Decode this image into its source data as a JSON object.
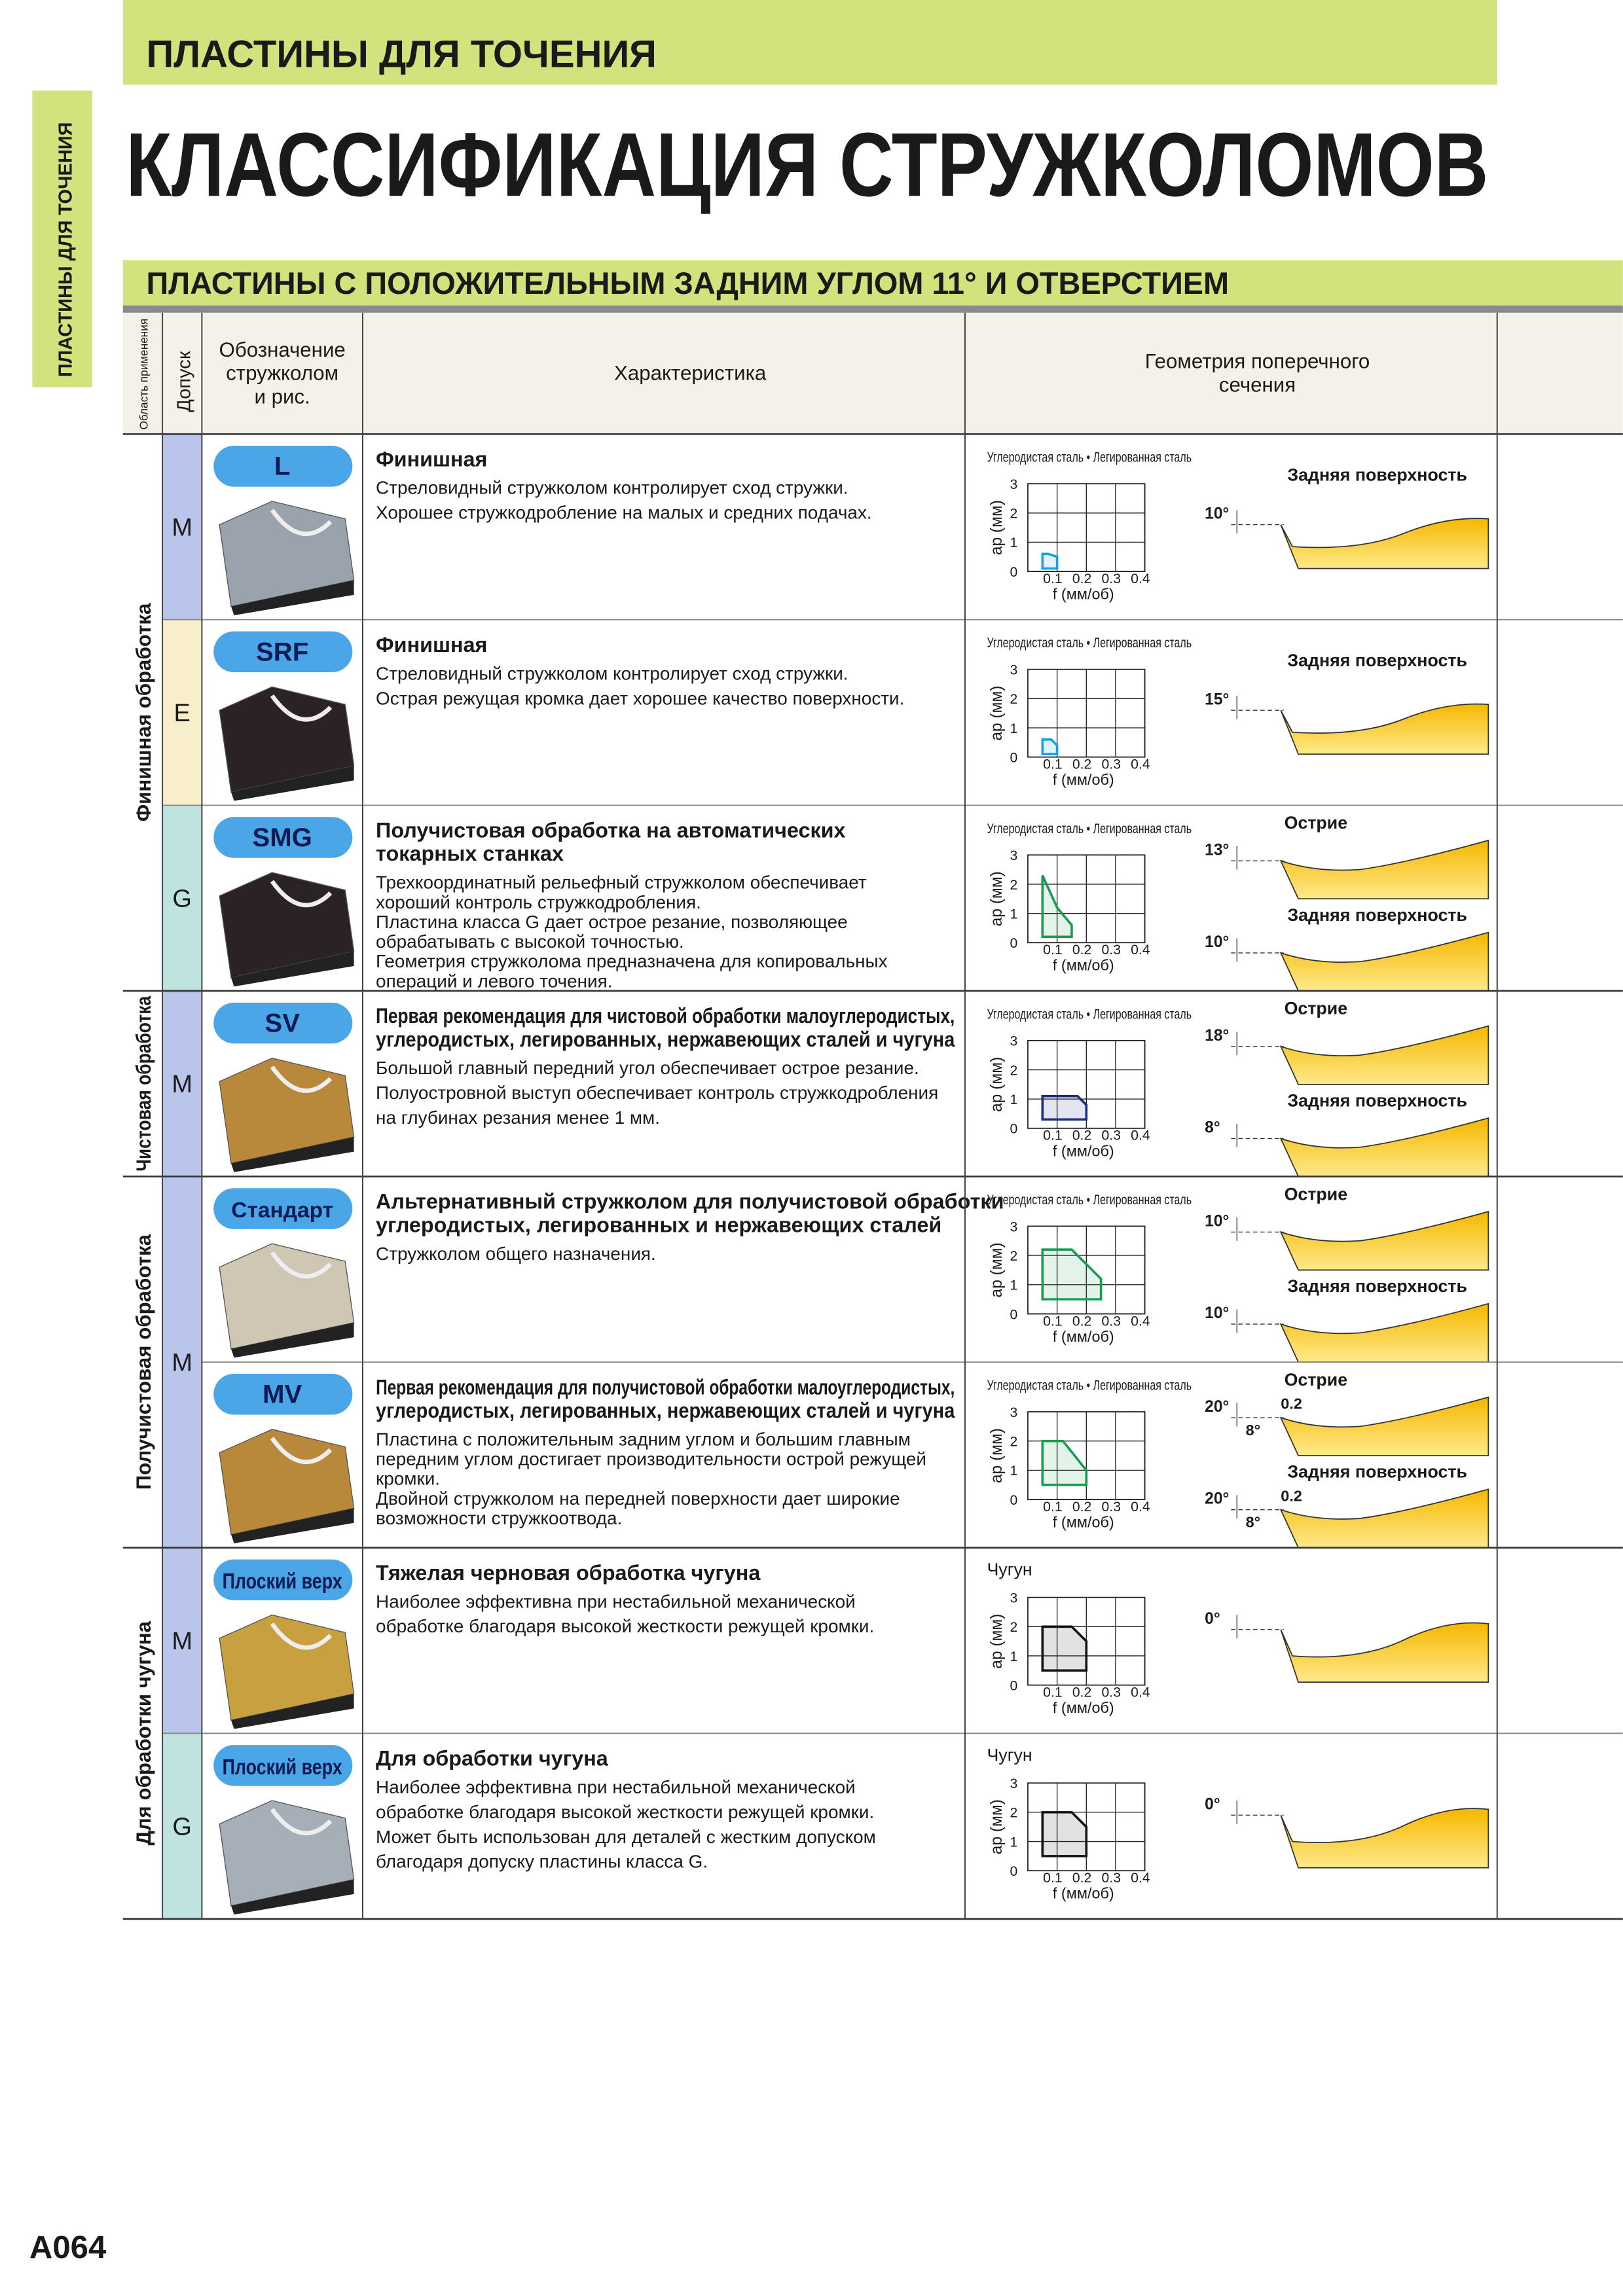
{
  "header": {
    "section": "ПЛАСТИНЫ ДЛЯ ТОЧЕНИЯ",
    "side_tab": "ПЛАСТИНЫ ДЛЯ ТОЧЕНИЯ",
    "title": "КЛАССИФИКАЦИЯ СТРУЖКОЛОМОВ",
    "subtitle": "ПЛАСТИНЫ С ПОЛОЖИТЕЛЬНЫМ ЗАДНИМ УГЛОМ 11° И ОТВЕРСТИЕМ"
  },
  "table": {
    "columns": {
      "area": "Область применения",
      "tolerance": "Допуск",
      "chipbreaker": [
        "Обозначение",
        "стружколом",
        "и рис."
      ],
      "characteristic": "Характеристика",
      "geometry": [
        "Геометрия поперечного",
        "сечения"
      ]
    },
    "chart_axes": {
      "xlabel": "f (мм/об)",
      "ylabel": "ap (мм)",
      "xlim": [
        0,
        0.4
      ],
      "ylim": [
        0,
        3
      ],
      "xticks": [
        0.1,
        0.2,
        0.3,
        0.4
      ],
      "yticks": [
        0,
        1,
        2,
        3
      ]
    },
    "groups": [
      {
        "label": "Финишная обработка",
        "tolerances": [
          {
            "class": "M",
            "items": [
              {
                "code": "L",
                "title": [
                  "Финишная"
                ],
                "description": [
                  "Стреловидный стружколом контролирует сход стружки.",
                  "Хорошее стружкодробление на малых и средних подачах."
                ],
                "material": "Углеродистая сталь • Легированная сталь",
                "zone": {
                  "color": "#1aa0e0",
                  "points": [
                    [
                      0.05,
                      0.1
                    ],
                    [
                      0.1,
                      0.1
                    ],
                    [
                      0.1,
                      0.5
                    ],
                    [
                      0.07,
                      0.6
                    ],
                    [
                      0.05,
                      0.6
                    ]
                  ]
                },
                "profiles": [
                  {
                    "label": "Задняя поверхность",
                    "angle": "10°"
                  }
                ]
              }
            ]
          },
          {
            "class": "E",
            "items": [
              {
                "code": "SRF",
                "title": [
                  "Финишная"
                ],
                "description": [
                  "Стреловидный стружколом контролирует сход стружки.",
                  "Острая режущая кромка дает хорошее качество поверхности."
                ],
                "material": "Углеродистая сталь • Легированная сталь",
                "zone": {
                  "color": "#1aa0e0",
                  "points": [
                    [
                      0.05,
                      0.1
                    ],
                    [
                      0.1,
                      0.1
                    ],
                    [
                      0.1,
                      0.4
                    ],
                    [
                      0.08,
                      0.6
                    ],
                    [
                      0.05,
                      0.6
                    ]
                  ]
                },
                "profiles": [
                  {
                    "label": "Задняя поверхность",
                    "angle": "15°"
                  }
                ]
              }
            ]
          },
          {
            "class": "G",
            "items": [
              {
                "code": "SMG",
                "title": [
                  "Получистовая обработка на автоматических",
                  "токарных станках"
                ],
                "description": [
                  "Трехкоординатный рельефный стружколом обеспечивает",
                  "хороший контроль стружкодробления.",
                  "Пластина класса G дает острое резание, позволяющее",
                  "обрабатывать с высокой точностью.",
                  "Геометрия стружколома предназначена для копировальных",
                  "операций и левого точения."
                ],
                "material": "Углеродистая сталь • Легированная сталь",
                "zone": {
                  "color": "#1a9a50",
                  "points": [
                    [
                      0.05,
                      0.2
                    ],
                    [
                      0.15,
                      0.2
                    ],
                    [
                      0.15,
                      0.6
                    ],
                    [
                      0.1,
                      1.2
                    ],
                    [
                      0.05,
                      2.3
                    ]
                  ]
                },
                "profiles": [
                  {
                    "label": "Острие",
                    "angle": "13°"
                  },
                  {
                    "label": "Задняя поверхность",
                    "angle": "10°"
                  }
                ]
              }
            ]
          }
        ]
      },
      {
        "label": "Чистовая обработка",
        "tolerances": [
          {
            "class": "M",
            "items": [
              {
                "code": "SV",
                "title": [
                  "Первая рекомендация для чистовой обработки малоуглеродистых,",
                  "углеродистых, легированных, нержавеющих сталей и чугуна"
                ],
                "description": [
                  "Большой главный передний угол обеспечивает острое резание.",
                  "Полуостровной выступ обеспечивает контроль стружкодробления",
                  "на глубинах резания менее 1 мм."
                ],
                "material": "Углеродистая сталь • Легированная сталь",
                "zone": {
                  "color": "#1a2a80",
                  "points": [
                    [
                      0.05,
                      0.3
                    ],
                    [
                      0.2,
                      0.3
                    ],
                    [
                      0.2,
                      0.8
                    ],
                    [
                      0.17,
                      1.1
                    ],
                    [
                      0.05,
                      1.1
                    ]
                  ]
                },
                "profiles": [
                  {
                    "label": "Острие",
                    "angle": "18°"
                  },
                  {
                    "label": "Задняя поверхность",
                    "angle": "8°"
                  }
                ]
              }
            ]
          }
        ]
      },
      {
        "label": "Получистовая обработка",
        "tolerances": [
          {
            "class": "M",
            "items": [
              {
                "code": "Стандарт",
                "title": [
                  "Альтернативный стружколом для получистовой обработки",
                  "углеродистых, легированных и нержавеющих сталей"
                ],
                "description": [
                  "Стружколом общего назначения."
                ],
                "material": "Углеродистая сталь • Легированная сталь",
                "zone": {
                  "color": "#1a9a50",
                  "points": [
                    [
                      0.05,
                      0.5
                    ],
                    [
                      0.25,
                      0.5
                    ],
                    [
                      0.25,
                      1.2
                    ],
                    [
                      0.15,
                      2.2
                    ],
                    [
                      0.05,
                      2.2
                    ]
                  ]
                },
                "profiles": [
                  {
                    "label": "Острие",
                    "angle": "10°"
                  },
                  {
                    "label": "Задняя поверхность",
                    "angle": "10°"
                  }
                ]
              },
              {
                "code": "MV",
                "title": [
                  "Первая рекомендация для получистовой обработки малоуглеродистых,",
                  "углеродистых, легированных, нержавеющих сталей и чугуна"
                ],
                "description": [
                  "Пластина с положительным задним углом и большим главным",
                  "передним углом достигает производительности острой режущей",
                  "кромки.",
                  "Двойной стружколом на передней поверхности дает широкие",
                  "возможности стружкоотвода."
                ],
                "material": "Углеродистая сталь • Легированная сталь",
                "zone": {
                  "color": "#1a9a50",
                  "points": [
                    [
                      0.05,
                      0.5
                    ],
                    [
                      0.2,
                      0.5
                    ],
                    [
                      0.2,
                      1.0
                    ],
                    [
                      0.12,
                      2.0
                    ],
                    [
                      0.05,
                      2.0
                    ]
                  ]
                },
                "profiles": [
                  {
                    "label": "Острие",
                    "angle": "20°",
                    "land": "0.2",
                    "angle2": "8°"
                  },
                  {
                    "label": "Задняя поверхность",
                    "angle": "20°",
                    "land": "0.2",
                    "angle2": "8°"
                  }
                ]
              }
            ]
          }
        ]
      },
      {
        "label": "Для обработки чугуна",
        "tolerances": [
          {
            "class": "M",
            "items": [
              {
                "code": "Плоский верх",
                "title": [
                  "Тяжелая черновая обработка чугуна"
                ],
                "description": [
                  "Наиболее эффективна при нестабильной механической",
                  "обработке благодаря высокой жесткости режущей кромки."
                ],
                "material": "Чугун",
                "zone": {
                  "color": "#111111",
                  "points": [
                    [
                      0.05,
                      0.5
                    ],
                    [
                      0.2,
                      0.5
                    ],
                    [
                      0.2,
                      1.5
                    ],
                    [
                      0.15,
                      2.0
                    ],
                    [
                      0.05,
                      2.0
                    ]
                  ]
                },
                "profiles": [
                  {
                    "angle": "0°"
                  }
                ]
              }
            ]
          },
          {
            "class": "G",
            "items": [
              {
                "code": "Плоский верх",
                "title": [
                  "Для обработки чугуна"
                ],
                "description": [
                  "Наиболее эффективна при нестабильной механической",
                  "обработке благодаря высокой жесткости режущей кромки.",
                  "Может быть использован для деталей с жестким допуском",
                  "благодаря допуску пластины класса G."
                ],
                "material": "Чугун",
                "zone": {
                  "color": "#111111",
                  "points": [
                    [
                      0.05,
                      0.5
                    ],
                    [
                      0.2,
                      0.5
                    ],
                    [
                      0.2,
                      1.5
                    ],
                    [
                      0.15,
                      2.0
                    ],
                    [
                      0.05,
                      2.0
                    ]
                  ]
                },
                "profiles": [
                  {
                    "angle": "0°"
                  }
                ]
              }
            ]
          }
        ]
      }
    ]
  },
  "footer": {
    "page": "A064"
  }
}
